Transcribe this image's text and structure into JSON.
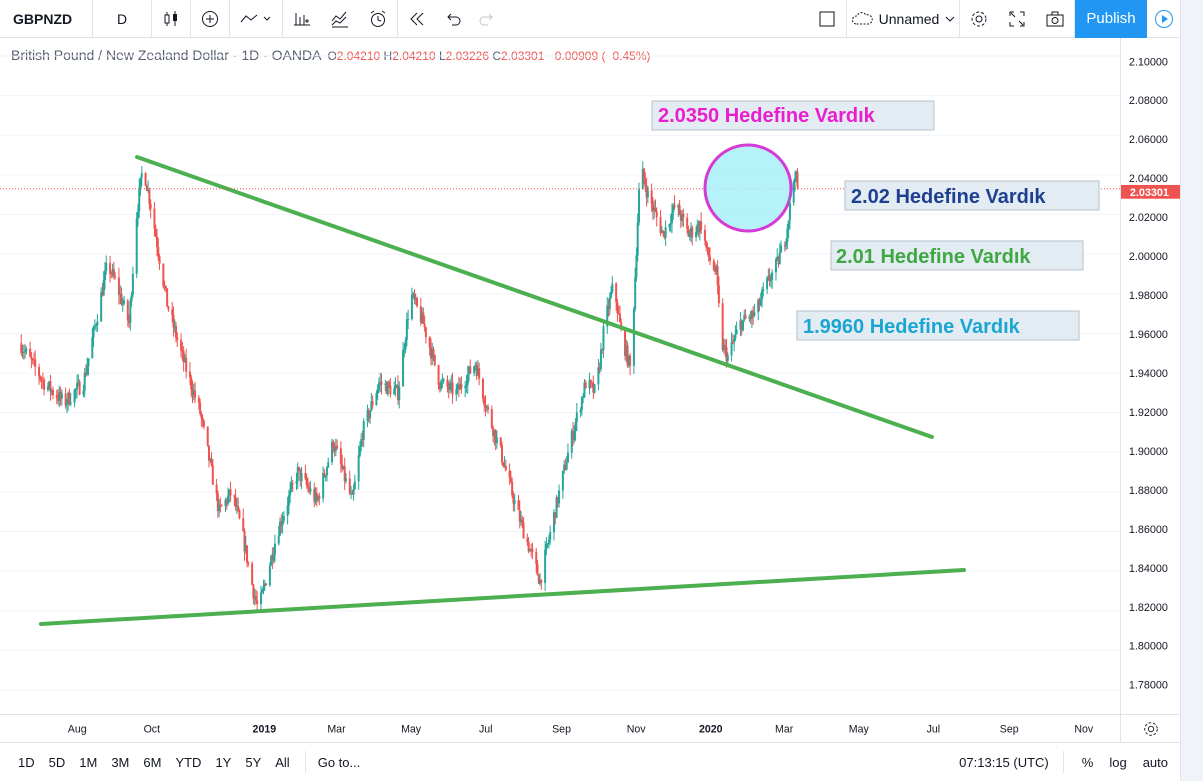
{
  "toolbar": {
    "symbol": "GBPNZD",
    "interval": "D",
    "icons": [
      "candles-icon",
      "add-indicator-icon",
      "line-tool-icon",
      "bars-style-icon",
      "compare-icon",
      "alert-icon",
      "replay-icon",
      "undo-icon",
      "redo-icon"
    ],
    "layout_name": "Unnamed",
    "publish_label": "Publish"
  },
  "legend": {
    "title": "British Pound / New Zealand Dollar · 1D · OANDA",
    "open_label": "O",
    "open": "2.04210",
    "high_label": "H",
    "high": "2.04210",
    "low_label": "L",
    "low": "2.03226",
    "close_label": "C",
    "close": "2.03301",
    "change": "−0.00909 (−0.45%)"
  },
  "bottom_bar": {
    "ranges": [
      "1D",
      "5D",
      "1M",
      "3M",
      "6M",
      "YTD",
      "1Y",
      "5Y",
      "All"
    ],
    "goto_label": "Go to...",
    "clock": "07:13:15 (UTC)",
    "percent_label": "%",
    "log_label": "log",
    "auto_label": "auto"
  },
  "colors": {
    "up": "#26a69a",
    "down": "#ef5350",
    "trendline": "#4caf50",
    "circle_stroke": "#d63ad6",
    "circle_fill": "#a8f0f8",
    "accent": "#2196f3"
  },
  "chart_data": {
    "type": "candlestick",
    "ylim": [
      1.77,
      2.105
    ],
    "y_ticks": [
      "2.10000",
      "2.08000",
      "2.06000",
      "2.04000",
      "2.02000",
      "2.00000",
      "1.98000",
      "1.96000",
      "1.94000",
      "1.92000",
      "1.90000",
      "1.88000",
      "1.86000",
      "1.84000",
      "1.82000",
      "1.80000",
      "1.78000"
    ],
    "x_ticks": [
      "Aug",
      "Oct",
      "2019",
      "Mar",
      "May",
      "Jul",
      "Sep",
      "Nov",
      "2020",
      "Mar",
      "May",
      "Jul",
      "Sep",
      "Nov"
    ],
    "x_range": [
      "2018-07-01",
      "2020-11-30"
    ],
    "last_price": "2.03301",
    "price_path": [
      [
        "2018-07-01",
        1.955
      ],
      [
        "2018-07-20",
        1.935
      ],
      [
        "2018-08-05",
        1.925
      ],
      [
        "2018-08-20",
        1.935
      ],
      [
        "2018-08-28",
        1.96
      ],
      [
        "2018-09-08",
        1.995
      ],
      [
        "2018-09-15",
        1.985
      ],
      [
        "2018-09-25",
        1.965
      ],
      [
        "2018-10-01",
        2.02
      ],
      [
        "2018-10-06",
        2.045
      ],
      [
        "2018-10-12",
        2.025
      ],
      [
        "2018-10-25",
        1.975
      ],
      [
        "2018-11-05",
        1.95
      ],
      [
        "2018-11-20",
        1.92
      ],
      [
        "2018-12-05",
        1.87
      ],
      [
        "2018-12-15",
        1.88
      ],
      [
        "2018-12-23",
        1.86
      ],
      [
        "2019-01-01",
        1.83
      ],
      [
        "2019-01-05",
        1.82
      ],
      [
        "2019-01-20",
        1.86
      ],
      [
        "2019-02-05",
        1.89
      ],
      [
        "2019-02-20",
        1.875
      ],
      [
        "2019-03-05",
        1.905
      ],
      [
        "2019-03-20",
        1.875
      ],
      [
        "2019-03-28",
        1.91
      ],
      [
        "2019-04-10",
        1.935
      ],
      [
        "2019-04-25",
        1.93
      ],
      [
        "2019-05-05",
        1.98
      ],
      [
        "2019-05-15",
        1.965
      ],
      [
        "2019-05-28",
        1.935
      ],
      [
        "2019-06-10",
        1.93
      ],
      [
        "2019-06-25",
        1.945
      ],
      [
        "2019-07-05",
        1.92
      ],
      [
        "2019-07-15",
        1.9
      ],
      [
        "2019-07-28",
        1.87
      ],
      [
        "2019-08-10",
        1.845
      ],
      [
        "2019-08-15",
        1.835
      ],
      [
        "2019-08-25",
        1.865
      ],
      [
        "2019-09-08",
        1.905
      ],
      [
        "2019-09-20",
        1.935
      ],
      [
        "2019-09-28",
        1.93
      ],
      [
        "2019-10-05",
        1.965
      ],
      [
        "2019-10-12",
        1.985
      ],
      [
        "2019-10-18",
        1.96
      ],
      [
        "2019-10-26",
        1.94
      ],
      [
        "2019-10-28",
        1.975
      ],
      [
        "2019-11-02",
        2.045
      ],
      [
        "2019-11-08",
        2.03
      ],
      [
        "2019-11-20",
        2.01
      ],
      [
        "2019-11-30",
        2.025
      ],
      [
        "2019-12-10",
        2.01
      ],
      [
        "2019-12-20",
        2.015
      ],
      [
        "2019-12-25",
        2.0
      ],
      [
        "2020-01-01",
        1.99
      ],
      [
        "2020-01-05",
        1.955
      ],
      [
        "2020-01-10",
        1.948
      ],
      [
        "2020-01-20",
        1.965
      ],
      [
        "2020-02-01",
        1.97
      ],
      [
        "2020-02-10",
        1.985
      ],
      [
        "2020-02-18",
        1.995
      ],
      [
        "2020-02-25",
        2.01
      ],
      [
        "2020-03-03",
        2.042
      ],
      [
        "2020-03-05",
        2.033
      ]
    ]
  },
  "annotations": {
    "texts": [
      {
        "label": "2.0350 Hedefine Vardık",
        "color": "#e91ecf"
      },
      {
        "label": "2.02 Hedefine Vardık",
        "color": "#1f3f8f"
      },
      {
        "label": "2.01 Hedefine Vardık",
        "color": "#3fa843"
      },
      {
        "label": "1.9960 Hedefine Vardık",
        "color": "#1aa6d1"
      }
    ]
  }
}
